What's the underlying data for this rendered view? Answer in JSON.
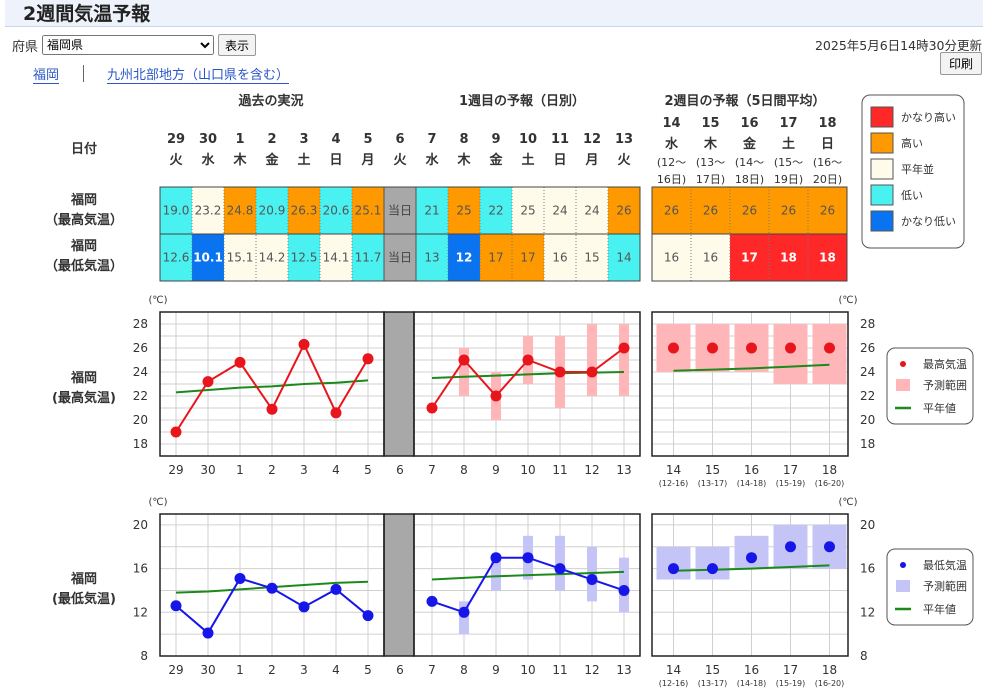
{
  "page": {
    "title": "2週間気温予報",
    "updated": "2025年5月6日14時30分更新"
  },
  "controls": {
    "pref_label": "府県",
    "pref_value": "福岡県",
    "show_button": "表示",
    "print_button": "印刷"
  },
  "links": {
    "area": "福岡",
    "region": "九州北部地方（山口県を含む）"
  },
  "table": {
    "date_label": "日付",
    "section_past": "過去の実況",
    "section_week1": "1週目の予報（日別）",
    "section_week2": "2週目の予報（5日間平均）",
    "row_max": [
      "福岡",
      "（最高気温）"
    ],
    "row_min": [
      "福岡",
      "（最低気温）"
    ],
    "today_label": "当日",
    "days": [
      {
        "d": "29",
        "w": "火",
        "max": "19.0",
        "min": "12.6"
      },
      {
        "d": "30",
        "w": "水",
        "max": "23.2",
        "min": "10.1"
      },
      {
        "d": "1",
        "w": "木",
        "max": "24.8",
        "min": "15.1"
      },
      {
        "d": "2",
        "w": "金",
        "max": "20.9",
        "min": "14.2"
      },
      {
        "d": "3",
        "w": "土",
        "max": "26.3",
        "min": "12.5"
      },
      {
        "d": "4",
        "w": "日",
        "max": "20.6",
        "min": "14.1"
      },
      {
        "d": "5",
        "w": "月",
        "max": "25.1",
        "min": "11.7"
      },
      {
        "d": "6",
        "w": "火",
        "max": "当日",
        "min": "当日"
      },
      {
        "d": "7",
        "w": "水",
        "max": "21",
        "min": "13"
      },
      {
        "d": "8",
        "w": "木",
        "max": "25",
        "min": "12"
      },
      {
        "d": "9",
        "w": "金",
        "max": "22",
        "min": "17"
      },
      {
        "d": "10",
        "w": "土",
        "max": "25",
        "min": "17"
      },
      {
        "d": "11",
        "w": "日",
        "max": "24",
        "min": "16"
      },
      {
        "d": "12",
        "w": "月",
        "max": "24",
        "min": "15"
      },
      {
        "d": "13",
        "w": "火",
        "max": "26",
        "min": "14"
      }
    ],
    "week2": [
      {
        "d": "14",
        "w": "水",
        "range1": "(12～",
        "range2": "16日)",
        "max": "26",
        "min": "16"
      },
      {
        "d": "15",
        "w": "木",
        "range1": "(13～",
        "range2": "17日)",
        "max": "26",
        "min": "16"
      },
      {
        "d": "16",
        "w": "金",
        "range1": "(14～",
        "range2": "18日)",
        "max": "26",
        "min": "17"
      },
      {
        "d": "17",
        "w": "土",
        "range1": "(15～",
        "range2": "19日)",
        "max": "26",
        "min": "18"
      },
      {
        "d": "18",
        "w": "日",
        "range1": "(16～",
        "range2": "20日)",
        "max": "26",
        "min": "18"
      }
    ],
    "max_classes": [
      "low",
      "normal",
      "high",
      "low",
      "high",
      "low",
      "high",
      "today",
      "low",
      "high",
      "low",
      "normal",
      "normal",
      "normal",
      "high"
    ],
    "min_classes": [
      "low",
      "vlow",
      "normal",
      "normal",
      "low",
      "normal",
      "low",
      "today",
      "low",
      "vlow",
      "high",
      "high",
      "normal",
      "normal",
      "low"
    ],
    "w2_max_classes": [
      "high",
      "high",
      "high",
      "high",
      "high"
    ],
    "w2_min_classes": [
      "normal",
      "normal",
      "vhigh",
      "vhigh",
      "vhigh"
    ]
  },
  "legend_classes": [
    {
      "key": "vhigh",
      "label": "かなり高い",
      "color": "#ff2828"
    },
    {
      "key": "high",
      "label": "高い",
      "color": "#ff9900"
    },
    {
      "key": "normal",
      "label": "平年並",
      "color": "#fffbea"
    },
    {
      "key": "low",
      "label": "低い",
      "color": "#4af1f1"
    },
    {
      "key": "vlow",
      "label": "かなり低い",
      "color": "#0a74f0"
    }
  ],
  "colors": {
    "today": "#a8a8a8",
    "max_line": "#e8161c",
    "min_line": "#1616e8",
    "normal_line": "#1b8a1b",
    "max_band": "#ffb6b9",
    "min_band": "#c4c4f7"
  },
  "charts": {
    "unit": "(℃)",
    "x_labels": [
      "29",
      "30",
      "1",
      "2",
      "3",
      "4",
      "5",
      "6",
      "7",
      "8",
      "9",
      "10",
      "11",
      "12",
      "13"
    ],
    "w2_labels": [
      "14",
      "15",
      "16",
      "17",
      "18"
    ],
    "w2_sublabels": [
      "(12-16)",
      "(13-17)",
      "(14-18)",
      "(15-19)",
      "(16-20)"
    ],
    "max_chart": {
      "label": [
        "福岡",
        "(最高気温)"
      ],
      "y_ticks": [
        "18",
        "20",
        "22",
        "24",
        "26",
        "28"
      ],
      "ylim": [
        17,
        29
      ],
      "legend": [
        "最高気温",
        "予測範囲",
        "平年値"
      ],
      "past": [
        19.0,
        23.2,
        24.8,
        20.9,
        26.3,
        20.6,
        25.1
      ],
      "normal_past": [
        22.3,
        22.5,
        22.7,
        22.8,
        23.0,
        23.1,
        23.3
      ],
      "forecast": [
        21,
        25,
        22,
        25,
        24,
        24,
        26
      ],
      "range": [
        null,
        [
          22,
          26
        ],
        [
          20,
          24
        ],
        [
          23,
          27
        ],
        [
          21,
          27
        ],
        [
          22,
          28
        ],
        [
          22,
          28
        ]
      ],
      "normal_fc": [
        23.5,
        23.6,
        23.7,
        23.8,
        23.9,
        23.95,
        24.0
      ],
      "w2": [
        26,
        26,
        26,
        26,
        26
      ],
      "w2_range": [
        [
          24,
          28
        ],
        [
          24,
          28
        ],
        [
          24,
          28
        ],
        [
          23,
          28
        ],
        [
          23,
          28
        ]
      ],
      "w2_normal": [
        24.1,
        24.2,
        24.3,
        24.45,
        24.6
      ]
    },
    "min_chart": {
      "label": [
        "福岡",
        "(最低気温)"
      ],
      "y_ticks": [
        "8",
        "12",
        "16",
        "20"
      ],
      "ylim": [
        8,
        21
      ],
      "legend": [
        "最低気温",
        "予測範囲",
        "平年値"
      ],
      "past": [
        12.6,
        10.1,
        15.1,
        14.2,
        12.5,
        14.1,
        11.7
      ],
      "normal_past": [
        13.8,
        13.9,
        14.1,
        14.3,
        14.5,
        14.7,
        14.8
      ],
      "forecast": [
        13,
        12,
        17,
        17,
        16,
        15,
        14
      ],
      "range": [
        null,
        [
          10,
          13
        ],
        [
          14,
          17
        ],
        [
          15,
          19
        ],
        [
          14,
          19
        ],
        [
          13,
          18
        ],
        [
          12,
          17
        ]
      ],
      "normal_fc": [
        15.0,
        15.15,
        15.3,
        15.4,
        15.5,
        15.6,
        15.7
      ],
      "w2": [
        16,
        16,
        17,
        18,
        18
      ],
      "w2_range": [
        [
          15,
          18
        ],
        [
          15,
          18
        ],
        [
          16,
          19
        ],
        [
          16,
          20
        ],
        [
          16,
          20
        ]
      ],
      "w2_normal": [
        15.8,
        15.9,
        16.0,
        16.15,
        16.3
      ]
    }
  }
}
